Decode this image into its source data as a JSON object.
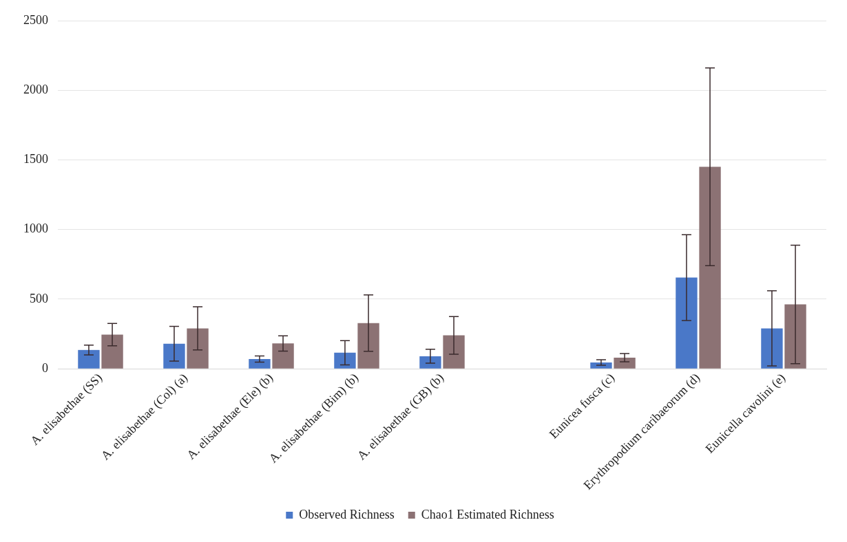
{
  "chart_data": {
    "type": "bar",
    "categories": [
      "A. elisabethae (SS)",
      "A. elisabethae (Col) (a)",
      "A. elisabethae (Ele) (b)",
      "A. elisabethae (Bim) (b)",
      "A. elisabethae (GB) (b)",
      null,
      "Eunicea fusca (c)",
      "Erythropodium caribaeorum (d)",
      "Eunicella cavolini (e)"
    ],
    "series": [
      {
        "name": "Observed Richness",
        "color": "#4a78c8",
        "values": [
          135,
          180,
          70,
          115,
          90,
          null,
          45,
          655,
          290
        ],
        "errors": [
          35,
          125,
          22,
          87,
          50,
          null,
          20,
          308,
          270
        ]
      },
      {
        "name": "Chao1 Estimated Richness",
        "color": "#8c7274",
        "values": [
          245,
          290,
          182,
          328,
          240,
          null,
          80,
          1450,
          462
        ],
        "errors": [
          80,
          155,
          55,
          203,
          135,
          null,
          30,
          710,
          425
        ]
      }
    ],
    "ylim": [
      0,
      2500
    ],
    "yticks": [
      0,
      500,
      1000,
      1500,
      2000,
      2500
    ],
    "grid": "y",
    "legend": "bottom"
  }
}
